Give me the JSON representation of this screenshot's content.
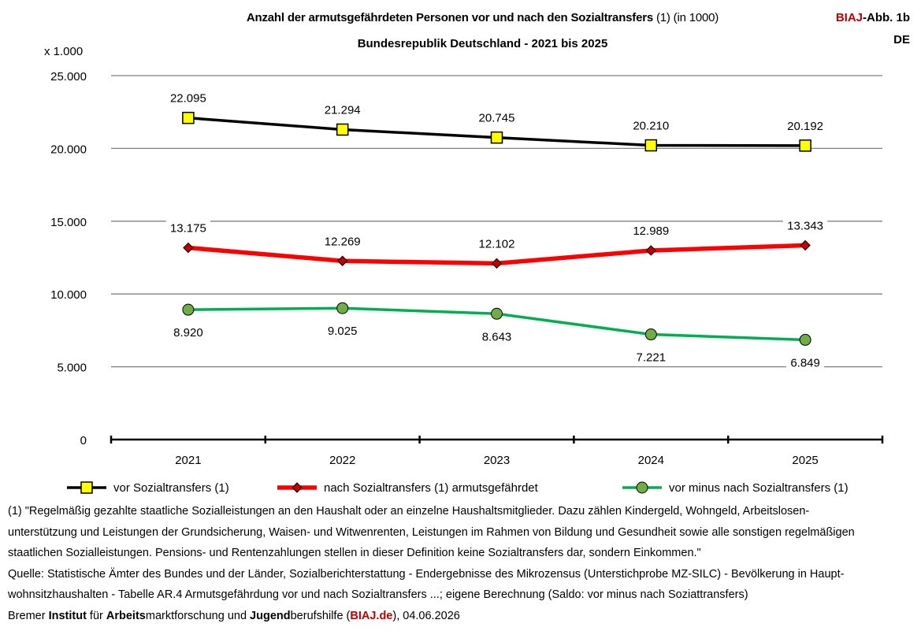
{
  "header": {
    "title_bold": "Anzahl der armutsgefährdeten Personen vor und nach den Sozialtransfers",
    "title_normal": " (1) (in 1000)",
    "subtitle": "Bundesrepublik Deutschland - 2021 bis 2025",
    "badge_brand": "BIAJ",
    "badge_rest": "-Abb. 1b",
    "badge_region": "DE"
  },
  "chart_data": {
    "type": "line",
    "y_unit_label": "x 1.000",
    "categories": [
      "2021",
      "2022",
      "2023",
      "2024",
      "2025"
    ],
    "ylim": [
      0,
      25000
    ],
    "y_ticks": [
      0,
      5000,
      10000,
      15000,
      20000,
      25000
    ],
    "y_tick_labels": [
      "0",
      "5.000",
      "10.000",
      "15.000",
      "20.000",
      "25.000"
    ],
    "grid": true,
    "legend_position": "bottom",
    "series": [
      {
        "name": "vor Sozialtransfers (1)",
        "values": [
          22095,
          21294,
          20745,
          20210,
          20192
        ],
        "labels": [
          "22.095",
          "21.294",
          "20.745",
          "20.210",
          "20.192"
        ],
        "color": "#000000",
        "marker": "square",
        "marker_fill": "#ffff00",
        "label_position": "above"
      },
      {
        "name": "nach Sozialtransfers (1) armutsgefährdet",
        "values": [
          13175,
          12269,
          12102,
          12989,
          13343
        ],
        "labels": [
          "13.175",
          "12.269",
          "12.102",
          "12.989",
          "13.343"
        ],
        "color": "#ff0000",
        "marker": "diamond",
        "marker_fill": "#c00000",
        "label_position": "above"
      },
      {
        "name": "vor minus nach Sozialtransfers (1)",
        "values": [
          8920,
          9025,
          8643,
          7221,
          6849
        ],
        "labels": [
          "8.920",
          "9.025",
          "8.643",
          "7.221",
          "6.849"
        ],
        "color": "#00b050",
        "marker": "circle",
        "marker_fill": "#70ad47",
        "label_position": "below"
      }
    ]
  },
  "footer": {
    "note_lines": [
      "(1) \"Regelmäßig gezahlte staatliche Sozialleistungen an den Haushalt oder an einzelne Haushaltsmitglieder. Dazu zählen Kindergeld, Wohngeld, Arbeitslosen-",
      "unterstützung und Leistungen der Grundsicherung, Waisen- und Witwenrenten, Leistungen im Rahmen von Bildung und Gesundheit sowie alle sonstigen regelmäßigen",
      "staatlichen Sozialleistungen. Pensions- und Rentenzahlungen stellen in dieser Definition keine Sozialtransfers dar, sondern Einkommen.\"",
      "Quelle: Statistische Ämter des Bundes und der Länder, Sozialberichterstattung - Endergebnisse des Mikrozensus (Unterstichprobe MZ-SILC) - Bevölkerung in Haupt-",
      "wohnsitzhaushalten - Tabelle AR.4 Armutsgefährdung  vor und nach Sozialtransfers  ...; eigene Berechnung (Saldo: vor minus nach Soziattransfers)"
    ],
    "credit": {
      "p1": "Bremer ",
      "b1": "Institut",
      "p2": " für ",
      "b2": "Arbeits",
      "p3": "marktforschung und ",
      "b3": "Jugend",
      "p4": "berufshilfe (",
      "brand": "BIAJ.de",
      "p5": "), 04.06.2026"
    }
  }
}
